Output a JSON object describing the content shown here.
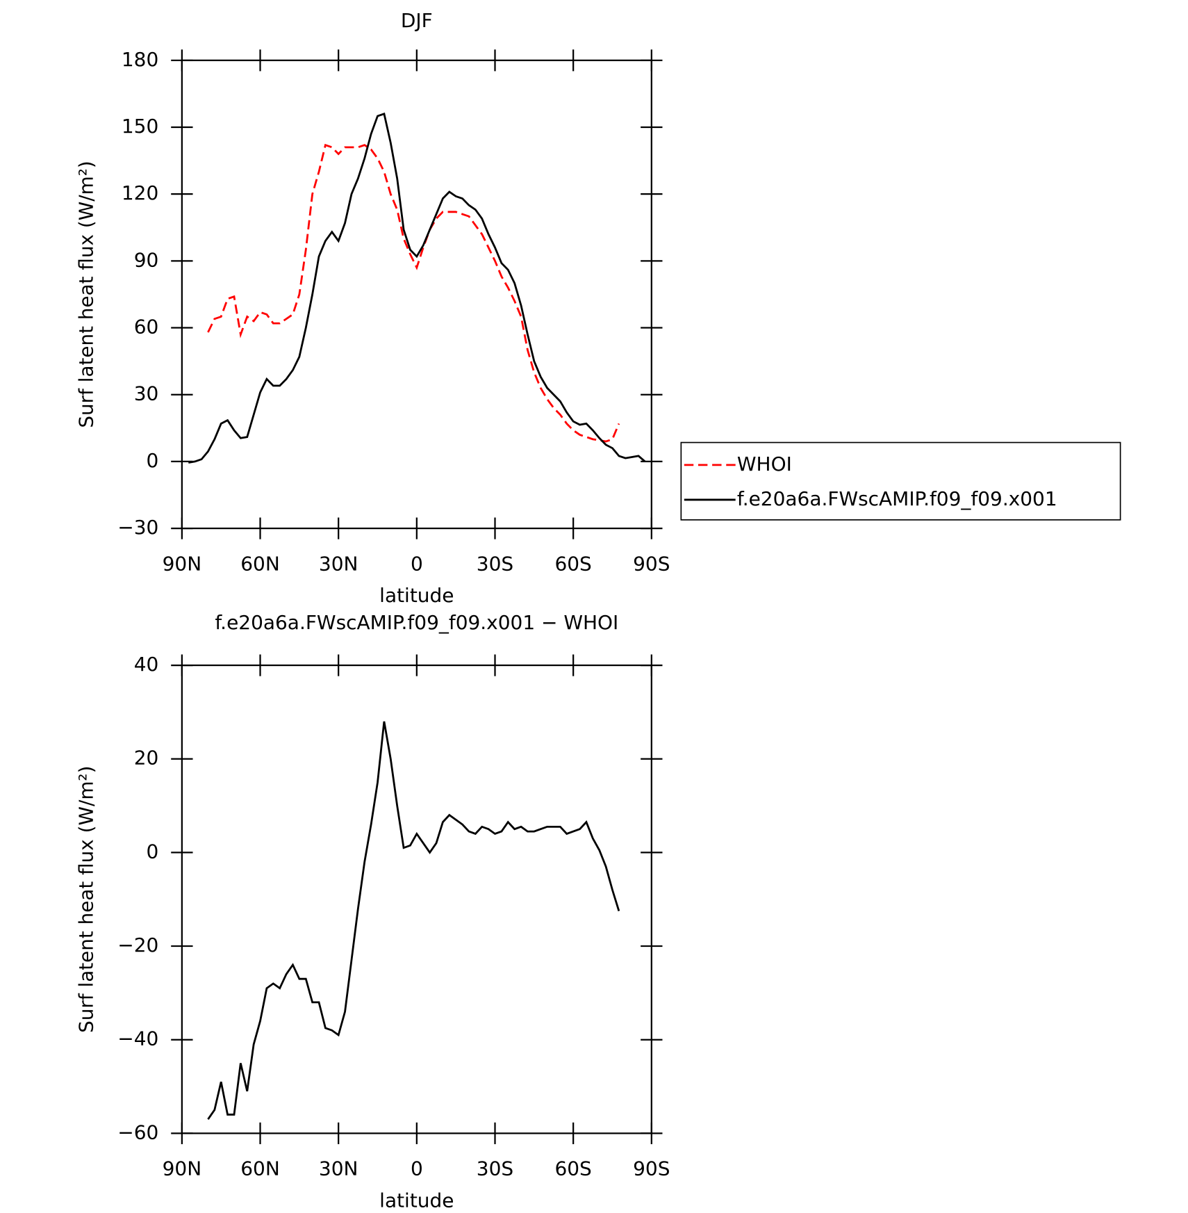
{
  "chart_data": [
    {
      "type": "line",
      "title": "DJF",
      "xlabel": "latitude",
      "ylabel": "Surf latent heat flux (W/m²)",
      "x": [
        90,
        87.5,
        85,
        82.5,
        80,
        77.5,
        75,
        72.5,
        70,
        67.5,
        65,
        62.5,
        60,
        57.5,
        55,
        52.5,
        50,
        47.5,
        45,
        42.5,
        40,
        37.5,
        35,
        32.5,
        30,
        27.5,
        25,
        22.5,
        20,
        17.5,
        15,
        12.5,
        10,
        7.5,
        5,
        2.5,
        0,
        -2.5,
        -5,
        -7.5,
        -10,
        -12.5,
        -15,
        -17.5,
        -20,
        -22.5,
        -25,
        -27.5,
        -30,
        -32.5,
        -35,
        -37.5,
        -40,
        -42.5,
        -45,
        -47.5,
        -50,
        -52.5,
        -55,
        -57.5,
        -60,
        -62.5,
        -65,
        -67.5,
        -70,
        -72.5,
        -75,
        -77.5,
        -80,
        -82.5,
        -85,
        -87.5,
        -90
      ],
      "series": [
        {
          "name": "WHOI",
          "color": "#ff0000",
          "dash": true,
          "values": [
            null,
            null,
            null,
            null,
            58,
            64,
            65,
            73,
            74,
            57,
            65,
            63,
            67,
            66,
            62,
            62,
            64,
            66,
            75,
            95,
            120,
            130,
            142,
            141,
            138,
            141,
            141,
            141,
            142,
            140,
            136,
            130,
            120,
            113,
            100,
            93,
            87,
            96,
            104,
            109,
            112,
            112,
            112,
            111,
            110,
            106,
            102,
            96,
            90,
            83,
            78,
            72,
            65,
            50,
            40,
            33,
            28,
            24,
            21,
            17,
            14,
            12,
            11,
            10,
            9.5,
            9,
            10,
            17,
            null,
            null,
            null,
            null,
            null
          ]
        },
        {
          "name": "f.e20a6a.FWscAMIP.f09_f09.x001",
          "color": "#000000",
          "dash": false,
          "values": [
            null,
            -0.5,
            0,
            1,
            4.5,
            10,
            17,
            18.5,
            14,
            10.5,
            11,
            21,
            31,
            37,
            34,
            34,
            37,
            41,
            47,
            60,
            75,
            92,
            99,
            103,
            99,
            107,
            120,
            127,
            136,
            147,
            155,
            156,
            143,
            127,
            104,
            95,
            92,
            97,
            104,
            111,
            118,
            121,
            119,
            118,
            115,
            113,
            109,
            102,
            96,
            89,
            86,
            80,
            70,
            57,
            45,
            38,
            33,
            30,
            27,
            22,
            18,
            16.5,
            17,
            14,
            10.5,
            7.5,
            6,
            2.5,
            1.5,
            2,
            2.5,
            0,
            null
          ]
        }
      ],
      "xlim": [
        90,
        -90
      ],
      "xticks": [
        {
          "value": 90,
          "label": "90N"
        },
        {
          "value": 60,
          "label": "60N"
        },
        {
          "value": 30,
          "label": "30N"
        },
        0,
        {
          "value": -30,
          "label": "30S"
        },
        {
          "value": -60,
          "label": "60S"
        },
        {
          "value": -90,
          "label": "90S"
        }
      ],
      "ylim": [
        -30,
        180
      ],
      "yticks": [
        {
          "value": -30,
          "label": "−30"
        },
        0,
        30,
        60,
        90,
        120,
        150,
        180
      ],
      "legend": "right"
    },
    {
      "type": "line",
      "title": "f.e20a6a.FWscAMIP.f09_f09.x001 − WHOI",
      "xlabel": "latitude",
      "ylabel": "Surf latent heat flux (W/m²)",
      "x": [
        90,
        87.5,
        85,
        82.5,
        80,
        77.5,
        75,
        72.5,
        70,
        67.5,
        65,
        62.5,
        60,
        57.5,
        55,
        52.5,
        50,
        47.5,
        45,
        42.5,
        40,
        37.5,
        35,
        32.5,
        30,
        27.5,
        25,
        22.5,
        20,
        17.5,
        15,
        12.5,
        10,
        7.5,
        5,
        2.5,
        0,
        -2.5,
        -5,
        -7.5,
        -10,
        -12.5,
        -15,
        -17.5,
        -20,
        -22.5,
        -25,
        -27.5,
        -30,
        -32.5,
        -35,
        -37.5,
        -40,
        -42.5,
        -45,
        -47.5,
        -50,
        -52.5,
        -55,
        -57.5,
        -60,
        -62.5,
        -65,
        -67.5,
        -70,
        -72.5,
        -75,
        -77.5,
        -80,
        -82.5,
        -85,
        -87.5,
        -90
      ],
      "color": "#000000",
      "values": [
        null,
        null,
        null,
        null,
        -57,
        -55,
        -49,
        -56,
        -56,
        -45,
        -51,
        -41,
        -36,
        -29,
        -28,
        -29,
        -26,
        -24,
        -27,
        -27,
        -32,
        -32,
        -37.5,
        -38,
        -39,
        -34,
        -23,
        -12,
        -2,
        6,
        15,
        28,
        20,
        10,
        1,
        1.5,
        4,
        2,
        0,
        2,
        6.5,
        8,
        7,
        6,
        4.5,
        4,
        5.5,
        5,
        4,
        4.5,
        6.5,
        5,
        5.5,
        4.5,
        4.5,
        5,
        5.5,
        5.5,
        5.5,
        4,
        4.5,
        5,
        6.5,
        3,
        0.5,
        -3,
        -8,
        -12.5,
        null,
        null,
        null,
        null,
        null
      ],
      "xlim": [
        90,
        -90
      ],
      "xticks": [
        {
          "value": 90,
          "label": "90N"
        },
        {
          "value": 60,
          "label": "60N"
        },
        {
          "value": 30,
          "label": "30N"
        },
        0,
        {
          "value": -30,
          "label": "30S"
        },
        {
          "value": -60,
          "label": "60S"
        },
        {
          "value": -90,
          "label": "90S"
        }
      ],
      "ylim": [
        -60,
        40
      ],
      "yticks": [
        {
          "value": -60,
          "label": "−60"
        },
        {
          "value": -40,
          "label": "−40"
        },
        {
          "value": -20,
          "label": "−20"
        },
        0,
        20,
        40
      ]
    }
  ]
}
